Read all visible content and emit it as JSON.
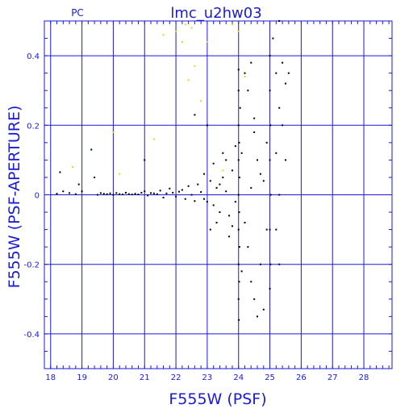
{
  "chart_data": {
    "type": "scatter",
    "title": "lmc_u2hw03",
    "subtitle": "PC",
    "xlabel": "F555W (PSF)",
    "ylabel": "F555W (PSF-APERTURE)",
    "xlim": [
      17.8,
      28.9
    ],
    "ylim": [
      -0.5,
      0.5
    ],
    "xticks": [
      "18",
      "19",
      "20",
      "21",
      "22",
      "23",
      "24",
      "25",
      "26",
      "27",
      "28"
    ],
    "yticks": [
      "0.4",
      "0.2",
      "0",
      "-0.2",
      "-0.4"
    ],
    "grid": true,
    "colors": {
      "axes": "#1a1ad9",
      "points": "#000000",
      "highlight_points": "#f2d21a"
    },
    "series": [
      {
        "color": "#000000",
        "points": [
          [
            18.2,
            0.003
          ],
          [
            18.3,
            0.065
          ],
          [
            18.4,
            0.01
          ],
          [
            18.6,
            0.005
          ],
          [
            18.8,
            0.002
          ],
          [
            18.9,
            0.03
          ],
          [
            19.0,
            0.01
          ],
          [
            19.3,
            0.13
          ],
          [
            19.4,
            0.05
          ],
          [
            19.5,
            0.0
          ],
          [
            19.6,
            0.005
          ],
          [
            19.7,
            0.003
          ],
          [
            19.8,
            0.002
          ],
          [
            19.9,
            0.004
          ],
          [
            20.0,
            0.0
          ],
          [
            20.1,
            0.005
          ],
          [
            20.2,
            0.002
          ],
          [
            20.3,
            0.001
          ],
          [
            20.4,
            0.006
          ],
          [
            20.5,
            0.002
          ],
          [
            20.6,
            0.001
          ],
          [
            20.7,
            0.003
          ],
          [
            20.8,
            0.001
          ],
          [
            20.9,
            0.006
          ],
          [
            21.0,
            0.1
          ],
          [
            21.0,
            0.01
          ],
          [
            21.1,
            -0.002
          ],
          [
            21.2,
            0.005
          ],
          [
            21.3,
            0.004
          ],
          [
            21.4,
            0.002
          ],
          [
            21.5,
            0.012
          ],
          [
            21.6,
            -0.008
          ],
          [
            21.7,
            0.004
          ],
          [
            21.8,
            0.018
          ],
          [
            21.9,
            0.006
          ],
          [
            22.0,
            -0.005
          ],
          [
            22.1,
            0.009
          ],
          [
            22.2,
            0.014
          ],
          [
            22.3,
            -0.012
          ],
          [
            22.4,
            0.025
          ],
          [
            22.5,
            0.0
          ],
          [
            22.6,
            -0.018
          ],
          [
            22.7,
            0.03
          ],
          [
            22.8,
            0.008
          ],
          [
            22.9,
            -0.012
          ],
          [
            22.6,
            0.23
          ],
          [
            23.0,
            0.2
          ],
          [
            22.9,
            0.06
          ],
          [
            23.0,
            -0.02
          ],
          [
            23.1,
            0.04
          ],
          [
            23.2,
            -0.03
          ],
          [
            23.3,
            0.02
          ],
          [
            23.4,
            -0.05
          ],
          [
            23.5,
            0.05
          ],
          [
            23.6,
            0.01
          ],
          [
            23.7,
            -0.06
          ],
          [
            23.8,
            0.07
          ],
          [
            23.9,
            -0.02
          ],
          [
            23.3,
            -0.08
          ],
          [
            23.2,
            0.09
          ],
          [
            23.5,
            0.12
          ],
          [
            23.7,
            -0.12
          ],
          [
            23.9,
            0.14
          ],
          [
            23.1,
            -0.1
          ],
          [
            23.6,
            0.1
          ],
          [
            23.4,
            0.03
          ],
          [
            23.8,
            -0.09
          ],
          [
            24.0,
            0.36
          ],
          [
            24.0,
            0.3
          ],
          [
            24.05,
            0.25
          ],
          [
            24.0,
            0.2
          ],
          [
            24.02,
            0.15
          ],
          [
            24.0,
            0.1
          ],
          [
            24.03,
            0.05
          ],
          [
            24.0,
            0.0
          ],
          [
            24.02,
            -0.05
          ],
          [
            24.0,
            -0.1
          ],
          [
            24.03,
            -0.15
          ],
          [
            24.0,
            -0.2
          ],
          [
            24.02,
            -0.25
          ],
          [
            24.0,
            -0.3
          ],
          [
            24.01,
            -0.36
          ],
          [
            24.1,
            0.12
          ],
          [
            24.2,
            -0.08
          ],
          [
            24.3,
            0.3
          ],
          [
            24.4,
            0.38
          ],
          [
            24.5,
            0.22
          ],
          [
            24.3,
            -0.15
          ],
          [
            24.4,
            -0.25
          ],
          [
            24.5,
            -0.3
          ],
          [
            24.6,
            0.1
          ],
          [
            24.7,
            -0.2
          ],
          [
            24.6,
            -0.35
          ],
          [
            24.8,
            0.04
          ],
          [
            24.9,
            -0.1
          ],
          [
            24.2,
            0.35
          ],
          [
            24.5,
            0.18
          ],
          [
            24.1,
            -0.22
          ],
          [
            24.7,
            0.06
          ],
          [
            24.8,
            -0.33
          ],
          [
            24.4,
            0.02
          ],
          [
            24.9,
            0.15
          ],
          [
            25.0,
            0.4
          ],
          [
            25.0,
            0.3
          ],
          [
            25.02,
            0.2
          ],
          [
            25.0,
            0.1
          ],
          [
            25.03,
            0.0
          ],
          [
            25.0,
            -0.1
          ],
          [
            25.02,
            -0.2
          ],
          [
            25.0,
            -0.27
          ],
          [
            25.1,
            0.45
          ],
          [
            25.2,
            0.35
          ],
          [
            25.3,
            0.25
          ],
          [
            25.2,
            0.12
          ],
          [
            25.3,
            0.0
          ],
          [
            25.2,
            -0.1
          ],
          [
            25.3,
            0.5
          ],
          [
            25.4,
            0.38
          ],
          [
            25.5,
            0.32
          ],
          [
            25.4,
            0.2
          ],
          [
            25.5,
            0.1
          ],
          [
            25.6,
            0.35
          ],
          [
            25.3,
            -0.2
          ]
        ]
      },
      {
        "color": "#f2d21a",
        "points": [
          [
            18.7,
            0.08
          ],
          [
            20.0,
            0.18
          ],
          [
            20.2,
            0.06
          ],
          [
            21.3,
            0.16
          ],
          [
            21.6,
            0.46
          ],
          [
            22.0,
            0.47
          ],
          [
            22.2,
            0.44
          ],
          [
            22.3,
            0.49
          ],
          [
            22.4,
            0.33
          ],
          [
            22.5,
            0.48
          ],
          [
            22.6,
            0.37
          ],
          [
            22.8,
            0.27
          ],
          [
            23.0,
            0.44
          ],
          [
            23.5,
            0.07
          ],
          [
            23.8,
            0.49
          ],
          [
            24.0,
            0.47
          ],
          [
            24.2,
            0.34
          ]
        ]
      }
    ]
  }
}
